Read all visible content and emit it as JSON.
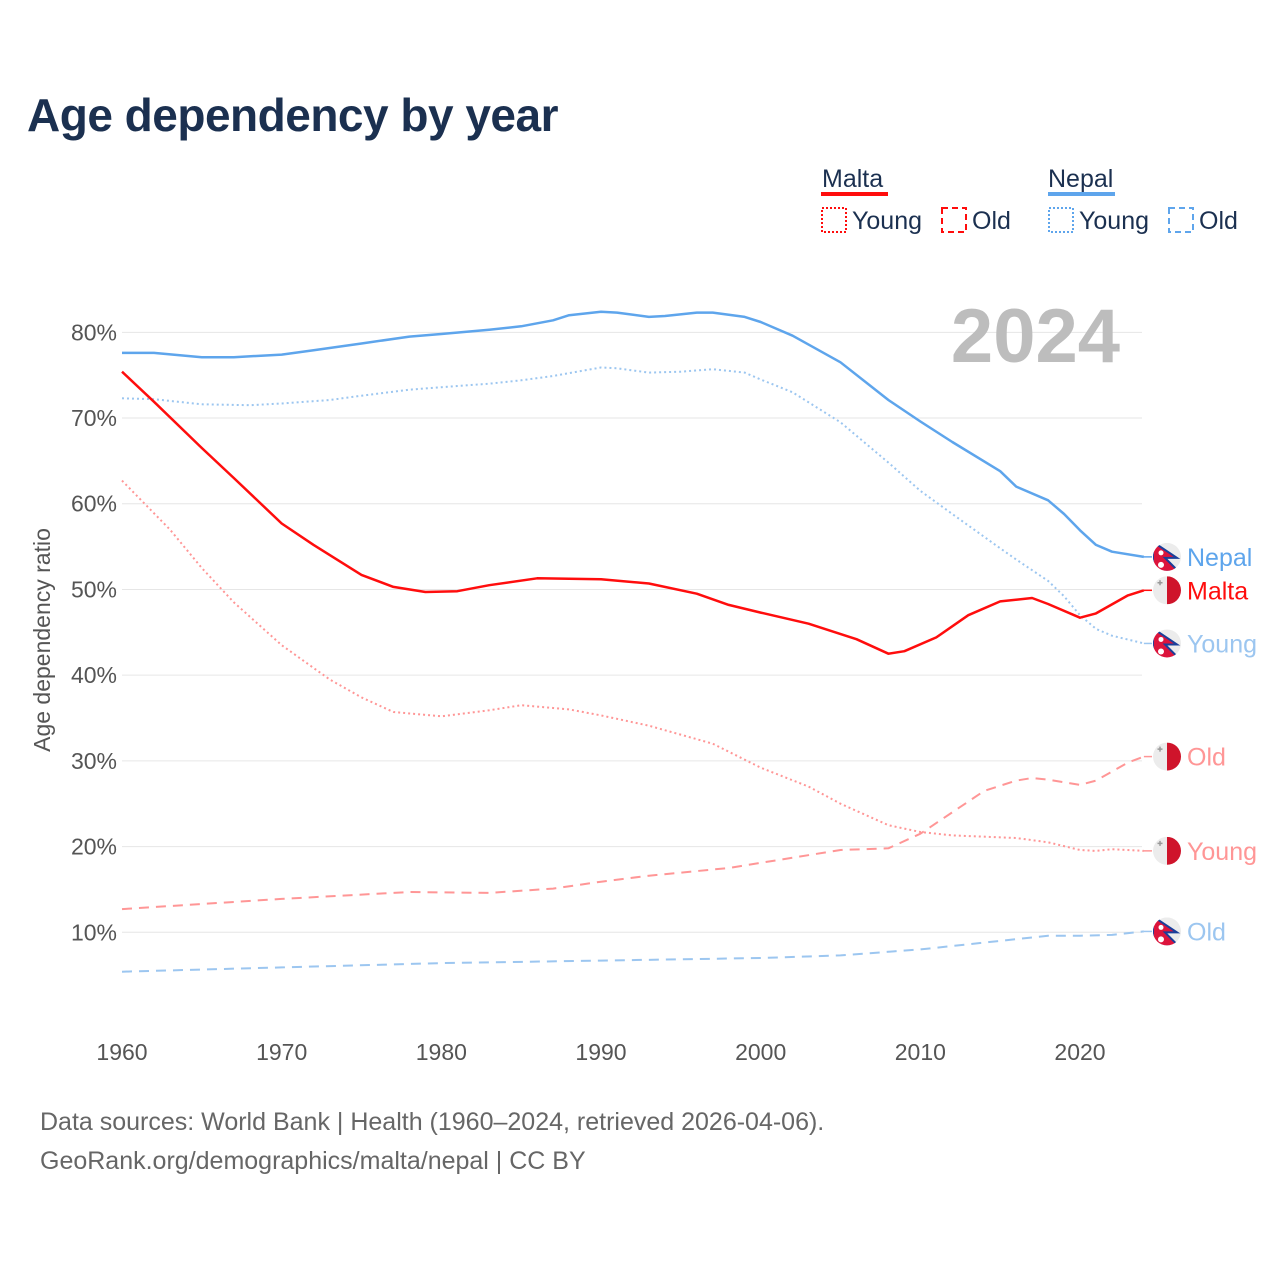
{
  "title": "Age dependency by year",
  "footer": {
    "line1": "Data sources: World Bank | Health (1960–2024, retrieved 2026-04-06).",
    "line2": "GeoRank.org/demographics/malta/nepal | CC BY"
  },
  "chart_data": {
    "type": "line",
    "title": "Age dependency by year",
    "xlabel": "",
    "ylabel": "Age dependency ratio",
    "xlim": [
      1960,
      2024
    ],
    "ylim": [
      0,
      82
    ],
    "x_ticks": [
      "1960",
      "1970",
      "1980",
      "1990",
      "2000",
      "2010",
      "2020"
    ],
    "y_ticks": [
      "10%",
      "20%",
      "30%",
      "40%",
      "50%",
      "60%",
      "70%",
      "80%"
    ],
    "y_tick_values": [
      10,
      20,
      30,
      40,
      50,
      60,
      70,
      80
    ],
    "grid": "horizontal",
    "year_watermark": "2024",
    "legend_placement": "top-right",
    "legend": {
      "groups": [
        {
          "country": "Malta",
          "color": "#ff0d0d",
          "items": [
            "Young",
            "Old"
          ]
        },
        {
          "country": "Nepal",
          "color": "#5ea5ec",
          "items": [
            "Young",
            "Old"
          ]
        }
      ]
    },
    "series": [
      {
        "name": "Nepal",
        "end_label": "Nepal",
        "country": "Nepal",
        "style": "solid",
        "color": "#5ea5ec",
        "x": [
          1960,
          1962,
          1965,
          1967,
          1970,
          1972,
          1975,
          1978,
          1980,
          1983,
          1985,
          1987,
          1988,
          1990,
          1991,
          1993,
          1994,
          1996,
          1997,
          1999,
          2000,
          2002,
          2005,
          2008,
          2010,
          2012,
          2015,
          2016,
          2018,
          2019,
          2020,
          2021,
          2022,
          2024
        ],
        "y": [
          77.6,
          77.6,
          77.1,
          77.1,
          77.4,
          77.9,
          78.7,
          79.5,
          79.8,
          80.3,
          80.7,
          81.4,
          82.0,
          82.4,
          82.3,
          81.8,
          81.9,
          82.3,
          82.3,
          81.8,
          81.2,
          79.6,
          76.5,
          72.1,
          69.6,
          67.2,
          63.8,
          62.0,
          60.4,
          58.8,
          56.9,
          55.2,
          54.4,
          53.8
        ]
      },
      {
        "name": "Nepal Young",
        "end_label": "Young",
        "country": "Nepal",
        "style": "dotted",
        "color": "#9cc6f0",
        "x": [
          1960,
          1962,
          1965,
          1968,
          1970,
          1973,
          1975,
          1978,
          1980,
          1983,
          1985,
          1987,
          1990,
          1991,
          1993,
          1995,
          1997,
          1999,
          2000,
          2002,
          2005,
          2008,
          2010,
          2012,
          2015,
          2016,
          2018,
          2019,
          2020,
          2021,
          2022,
          2024
        ],
        "y": [
          72.3,
          72.2,
          71.6,
          71.5,
          71.7,
          72.1,
          72.6,
          73.3,
          73.6,
          74.0,
          74.4,
          74.9,
          75.9,
          75.8,
          75.3,
          75.4,
          75.7,
          75.3,
          74.5,
          73.0,
          69.5,
          64.8,
          61.5,
          58.8,
          54.8,
          53.5,
          51.0,
          49.2,
          47.0,
          45.4,
          44.6,
          43.7
        ]
      },
      {
        "name": "Nepal Old",
        "end_label": "Old",
        "country": "Nepal",
        "style": "dashed",
        "color": "#9cc6f0",
        "x": [
          1960,
          1970,
          1980,
          1990,
          2000,
          2005,
          2010,
          2015,
          2018,
          2020,
          2022,
          2024
        ],
        "y": [
          5.4,
          5.9,
          6.4,
          6.7,
          7.0,
          7.3,
          8.0,
          9.0,
          9.6,
          9.6,
          9.7,
          10.1
        ]
      },
      {
        "name": "Malta",
        "end_label": "Malta",
        "country": "Malta",
        "style": "solid",
        "color": "#ff0d0d",
        "x": [
          1960,
          1962,
          1965,
          1967,
          1970,
          1972,
          1975,
          1977,
          1979,
          1981,
          1983,
          1986,
          1990,
          1993,
          1996,
          1998,
          2000,
          2003,
          2006,
          2008,
          2009,
          2011,
          2013,
          2015,
          2017,
          2018,
          2020,
          2021,
          2023,
          2024
        ],
        "y": [
          75.4,
          71.9,
          66.5,
          63.0,
          57.7,
          55.2,
          51.7,
          50.3,
          49.7,
          49.8,
          50.5,
          51.3,
          51.2,
          50.7,
          49.5,
          48.2,
          47.3,
          46.0,
          44.2,
          42.5,
          42.8,
          44.4,
          47.0,
          48.6,
          49.0,
          48.3,
          46.7,
          47.2,
          49.3,
          49.9
        ]
      },
      {
        "name": "Malta Young",
        "end_label": "Young",
        "country": "Malta",
        "style": "dotted",
        "color": "#ff9696",
        "x": [
          1960,
          1963,
          1965,
          1967,
          1970,
          1973,
          1975,
          1977,
          1980,
          1983,
          1985,
          1988,
          1990,
          1993,
          1997,
          2000,
          2003,
          2005,
          2008,
          2010,
          2012,
          2016,
          2018,
          2020,
          2021,
          2022,
          2024
        ],
        "y": [
          62.7,
          57.0,
          52.5,
          48.5,
          43.5,
          39.5,
          37.4,
          35.7,
          35.2,
          35.9,
          36.5,
          36.0,
          35.3,
          34.1,
          32.0,
          29.2,
          27.0,
          25.0,
          22.5,
          21.7,
          21.3,
          21.0,
          20.5,
          19.6,
          19.5,
          19.7,
          19.5
        ]
      },
      {
        "name": "Malta Old",
        "end_label": "Old",
        "country": "Malta",
        "style": "dashed",
        "color": "#ff9696",
        "x": [
          1960,
          1965,
          1970,
          1975,
          1978,
          1983,
          1987,
          1990,
          1993,
          1998,
          2002,
          2005,
          2008,
          2010,
          2012,
          2014,
          2016,
          2017,
          2018,
          2020,
          2021,
          2023,
          2024
        ],
        "y": [
          12.7,
          13.3,
          13.9,
          14.4,
          14.7,
          14.6,
          15.1,
          15.9,
          16.6,
          17.5,
          18.7,
          19.6,
          19.8,
          21.5,
          24.0,
          26.5,
          27.7,
          28.0,
          27.8,
          27.2,
          27.7,
          29.8,
          30.5
        ]
      }
    ]
  }
}
